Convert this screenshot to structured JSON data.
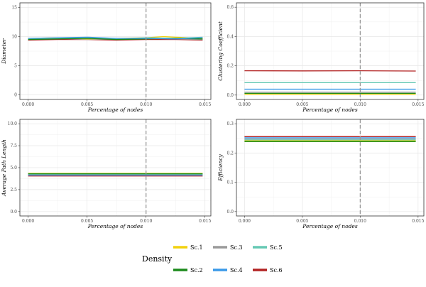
{
  "legend": {
    "title": "Density",
    "items": [
      {
        "name": "Sc.1",
        "color": "#f2d20f"
      },
      {
        "name": "Sc.3",
        "color": "#9a9a9a"
      },
      {
        "name": "Sc.5",
        "color": "#66c9b4"
      },
      {
        "name": "Sc.2",
        "color": "#1b8a1b"
      },
      {
        "name": "Sc.4",
        "color": "#3a99e8"
      },
      {
        "name": "Sc.6",
        "color": "#b22222"
      }
    ]
  },
  "chart_data": [
    {
      "type": "line",
      "xlabel": "Percentage of nodes",
      "ylabel": "Diameter",
      "xlim": [
        -0.0007,
        0.0155
      ],
      "ylim": [
        -0.8,
        15.8
      ],
      "xticks": [
        0.0,
        0.005,
        0.01,
        0.015
      ],
      "xtick_labels": [
        "0.000",
        "0.005",
        "0.010",
        "0.015"
      ],
      "yticks": [
        0,
        5,
        10,
        15
      ],
      "ytick_labels": [
        "0",
        "5",
        "10",
        "15"
      ],
      "vline": 0.01,
      "grid": true,
      "series": [
        {
          "name": "Sc.1",
          "x": [
            0.0,
            0.0025,
            0.005,
            0.0075,
            0.01,
            0.0115,
            0.0125,
            0.0148
          ],
          "values": [
            9.7,
            9.8,
            9.6,
            9.7,
            9.8,
            10.0,
            9.9,
            9.7
          ]
        },
        {
          "name": "Sc.2",
          "x": [
            0.0,
            0.0025,
            0.005,
            0.0075,
            0.01,
            0.0125,
            0.0148
          ],
          "values": [
            9.5,
            9.6,
            9.7,
            9.5,
            9.6,
            9.7,
            9.6
          ]
        },
        {
          "name": "Sc.3",
          "x": [
            0.0,
            0.0025,
            0.005,
            0.0075,
            0.01,
            0.0125,
            0.0148
          ],
          "values": [
            9.6,
            9.7,
            9.5,
            9.6,
            9.7,
            9.6,
            9.5
          ]
        },
        {
          "name": "Sc.4",
          "x": [
            0.0,
            0.0025,
            0.005,
            0.0075,
            0.01,
            0.0125,
            0.0148
          ],
          "values": [
            9.7,
            9.8,
            9.9,
            9.7,
            9.7,
            9.6,
            9.8
          ]
        },
        {
          "name": "Sc.5",
          "x": [
            0.0,
            0.0025,
            0.005,
            0.0075,
            0.01,
            0.0125,
            0.0148
          ],
          "values": [
            9.6,
            9.7,
            9.8,
            9.6,
            9.8,
            9.7,
            9.9
          ]
        },
        {
          "name": "Sc.6",
          "x": [
            0.0,
            0.0025,
            0.005,
            0.0075,
            0.01,
            0.0125,
            0.0148
          ],
          "values": [
            9.4,
            9.5,
            9.5,
            9.4,
            9.5,
            9.5,
            9.4
          ]
        }
      ]
    },
    {
      "type": "line",
      "xlabel": "Percentage of nodes",
      "ylabel": "Clustering Coefficient",
      "xlim": [
        -0.0007,
        0.0155
      ],
      "ylim": [
        -0.03,
        0.63
      ],
      "xticks": [
        0.0,
        0.005,
        0.01,
        0.015
      ],
      "xtick_labels": [
        "0.000",
        "0.005",
        "0.010",
        "0.015"
      ],
      "yticks": [
        0.0,
        0.2,
        0.4,
        0.6
      ],
      "ytick_labels": [
        "0.0",
        "0.2",
        "0.4",
        "0.6"
      ],
      "vline": 0.01,
      "grid": true,
      "series": [
        {
          "name": "Sc.1",
          "x": [
            0.0,
            0.0148
          ],
          "values": [
            0.006,
            0.006
          ]
        },
        {
          "name": "Sc.2",
          "x": [
            0.0,
            0.0148
          ],
          "values": [
            0.012,
            0.012
          ]
        },
        {
          "name": "Sc.3",
          "x": [
            0.0,
            0.0148
          ],
          "values": [
            0.02,
            0.02
          ]
        },
        {
          "name": "Sc.4",
          "x": [
            0.0,
            0.0148
          ],
          "values": [
            0.04,
            0.04
          ]
        },
        {
          "name": "Sc.5",
          "x": [
            0.0,
            0.0148
          ],
          "values": [
            0.085,
            0.085
          ]
        },
        {
          "name": "Sc.6",
          "x": [
            0.0,
            0.005,
            0.01,
            0.0148
          ],
          "values": [
            0.166,
            0.165,
            0.166,
            0.164
          ]
        }
      ]
    },
    {
      "type": "line",
      "xlabel": "Percentage of nodes",
      "ylabel": "Average Path Length",
      "xlim": [
        -0.0007,
        0.0155
      ],
      "ylim": [
        -0.5,
        10.5
      ],
      "xticks": [
        0.0,
        0.005,
        0.01,
        0.015
      ],
      "xtick_labels": [
        "0.000",
        "0.005",
        "0.010",
        "0.015"
      ],
      "yticks": [
        0.0,
        2.5,
        5.0,
        7.5,
        10.0
      ],
      "ytick_labels": [
        "0.0",
        "2.5",
        "5.0",
        "7.5",
        "10.0"
      ],
      "vline": 0.01,
      "grid": true,
      "series": [
        {
          "name": "Sc.1",
          "x": [
            0.0,
            0.0148
          ],
          "values": [
            4.35,
            4.35
          ]
        },
        {
          "name": "Sc.2",
          "x": [
            0.0,
            0.0148
          ],
          "values": [
            4.3,
            4.3
          ]
        },
        {
          "name": "Sc.3",
          "x": [
            0.0,
            0.0148
          ],
          "values": [
            4.2,
            4.2
          ]
        },
        {
          "name": "Sc.4",
          "x": [
            0.0,
            0.0148
          ],
          "values": [
            4.15,
            4.15
          ]
        },
        {
          "name": "Sc.5",
          "x": [
            0.0,
            0.0148
          ],
          "values": [
            4.25,
            4.25
          ]
        },
        {
          "name": "Sc.6",
          "x": [
            0.0,
            0.0148
          ],
          "values": [
            4.05,
            4.05
          ]
        }
      ]
    },
    {
      "type": "line",
      "xlabel": "Percentage of nodes",
      "ylabel": "Efficiency",
      "xlim": [
        -0.0007,
        0.0155
      ],
      "ylim": [
        -0.015,
        0.315
      ],
      "xticks": [
        0.0,
        0.005,
        0.01,
        0.015
      ],
      "xtick_labels": [
        "0.000",
        "0.005",
        "0.010",
        "0.015"
      ],
      "yticks": [
        0.0,
        0.1,
        0.2,
        0.3
      ],
      "ytick_labels": [
        "0.0",
        "0.1",
        "0.2",
        "0.3"
      ],
      "vline": 0.01,
      "grid": true,
      "series": [
        {
          "name": "Sc.1",
          "x": [
            0.0,
            0.0148
          ],
          "values": [
            0.242,
            0.242
          ]
        },
        {
          "name": "Sc.2",
          "x": [
            0.0,
            0.0148
          ],
          "values": [
            0.239,
            0.239
          ]
        },
        {
          "name": "Sc.3",
          "x": [
            0.0,
            0.0148
          ],
          "values": [
            0.248,
            0.248
          ]
        },
        {
          "name": "Sc.4",
          "x": [
            0.0,
            0.0148
          ],
          "values": [
            0.252,
            0.252
          ]
        },
        {
          "name": "Sc.5",
          "x": [
            0.0,
            0.0148
          ],
          "values": [
            0.245,
            0.245
          ]
        },
        {
          "name": "Sc.6",
          "x": [
            0.0,
            0.0148
          ],
          "values": [
            0.256,
            0.256
          ]
        }
      ]
    }
  ]
}
